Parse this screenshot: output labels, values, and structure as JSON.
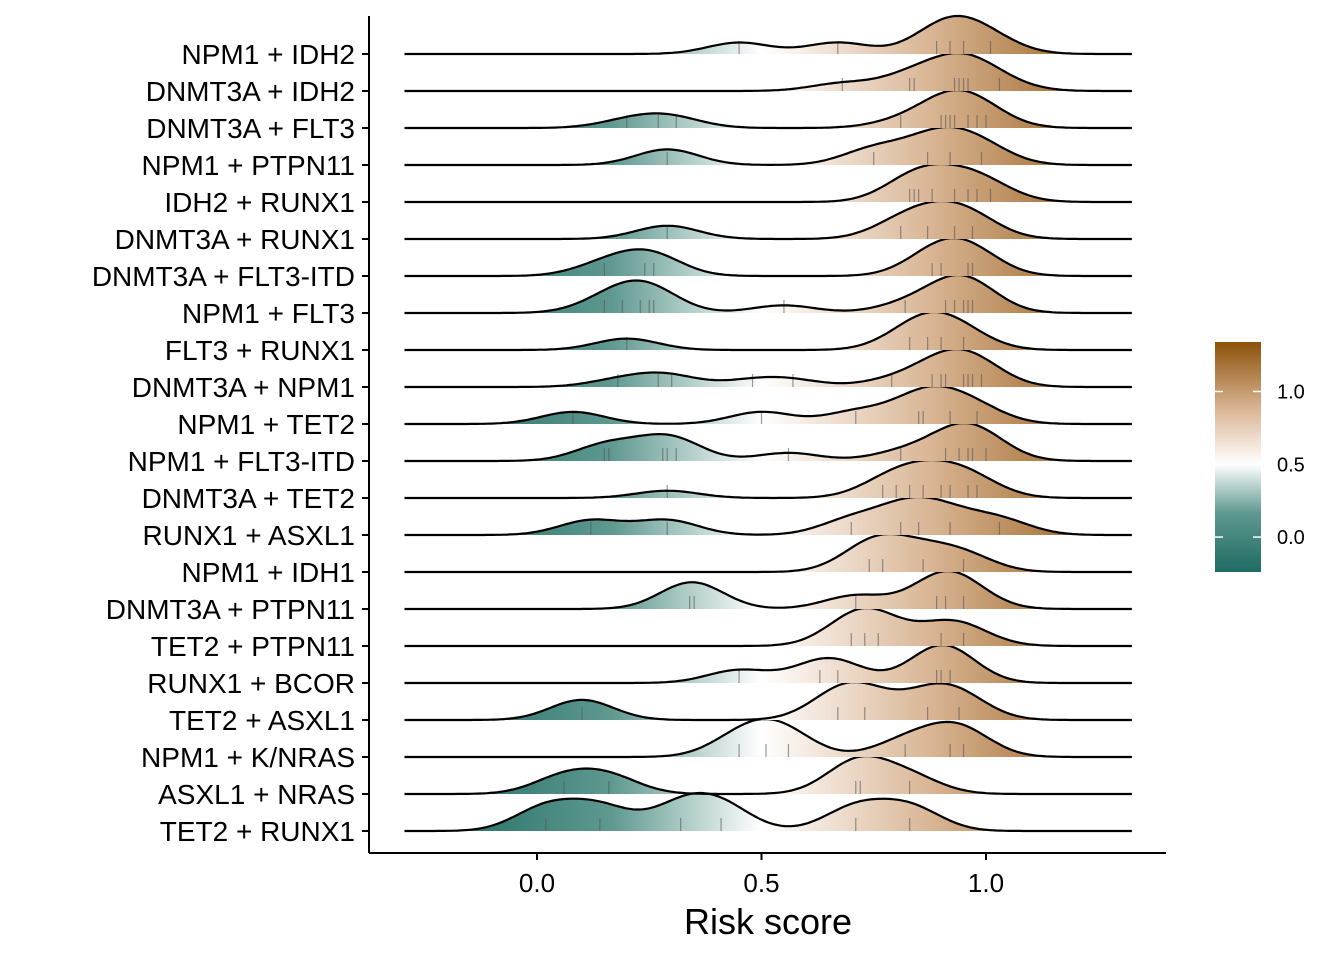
{
  "chart_data": {
    "type": "ridgeline",
    "xlabel": "Risk score",
    "xlim": [
      -0.37,
      1.4
    ],
    "xticks": [
      0.0,
      0.5,
      1.0
    ],
    "xtick_labels": [
      "0.0",
      "0.5",
      "1.0"
    ],
    "grid": false,
    "legend_position": "right",
    "colorbar": {
      "range": [
        -0.24,
        1.34
      ],
      "ticks": [
        0.0,
        0.5,
        1.0
      ],
      "tick_labels": [
        "0.0",
        "0.5",
        "1.0"
      ],
      "colors": {
        "low": "#1e6b62",
        "mid": "#ffffff",
        "high": "#8c510a"
      }
    },
    "series": [
      {
        "name": "NPM1 + IDH2",
        "values": [
          0.45,
          0.67,
          0.89,
          0.92,
          0.95,
          1.01
        ]
      },
      {
        "name": "DNMT3A + IDH2",
        "values": [
          0.68,
          0.83,
          0.84,
          0.93,
          0.94,
          0.95,
          0.96,
          1.03
        ]
      },
      {
        "name": "DNMT3A + FLT3",
        "values": [
          0.2,
          0.27,
          0.31,
          0.81,
          0.9,
          0.91,
          0.92,
          0.93,
          0.96,
          0.98,
          1.0
        ]
      },
      {
        "name": "NPM1 + PTPN11",
        "values": [
          0.29,
          0.75,
          0.87,
          0.92,
          0.99
        ]
      },
      {
        "name": "IDH2 + RUNX1",
        "values": [
          0.83,
          0.84,
          0.85,
          0.88,
          0.93,
          0.96,
          0.98,
          1.01
        ]
      },
      {
        "name": "DNMT3A + RUNX1",
        "values": [
          0.29,
          0.81,
          0.87,
          0.93,
          0.97
        ]
      },
      {
        "name": "DNMT3A + FLT3-ITD",
        "values": [
          0.15,
          0.24,
          0.26,
          0.88,
          0.9,
          0.96,
          0.97
        ]
      },
      {
        "name": "NPM1 + FLT3",
        "values": [
          0.15,
          0.19,
          0.23,
          0.25,
          0.26,
          0.55,
          0.82,
          0.91,
          0.93,
          0.95,
          0.96,
          0.97
        ]
      },
      {
        "name": "FLT3 + RUNX1",
        "values": [
          0.2,
          0.83,
          0.87,
          0.9,
          0.95
        ]
      },
      {
        "name": "DNMT3A + NPM1",
        "values": [
          0.18,
          0.27,
          0.3,
          0.48,
          0.57,
          0.79,
          0.88,
          0.9,
          0.91,
          0.95,
          0.96,
          0.97,
          0.99
        ]
      },
      {
        "name": "NPM1 + TET2",
        "values": [
          0.08,
          0.5,
          0.71,
          0.85,
          0.86,
          0.92,
          0.98
        ]
      },
      {
        "name": "NPM1 + FLT3-ITD",
        "values": [
          0.15,
          0.16,
          0.28,
          0.29,
          0.31,
          0.56,
          0.81,
          0.91,
          0.94,
          0.96,
          0.97,
          1.0
        ]
      },
      {
        "name": "DNMT3A + TET2",
        "values": [
          0.29,
          0.77,
          0.8,
          0.83,
          0.86,
          0.9,
          0.92,
          0.96,
          0.98
        ]
      },
      {
        "name": "RUNX1 + ASXL1",
        "values": [
          0.12,
          0.29,
          0.7,
          0.81,
          0.85,
          0.92,
          1.03
        ]
      },
      {
        "name": "NPM1 + IDH1",
        "values": [
          0.74,
          0.77,
          0.86,
          0.95
        ]
      },
      {
        "name": "DNMT3A + PTPN11",
        "values": [
          0.34,
          0.35,
          0.71,
          0.89,
          0.91,
          0.95
        ]
      },
      {
        "name": "TET2 + PTPN11",
        "values": [
          0.7,
          0.73,
          0.76,
          0.9,
          0.95
        ]
      },
      {
        "name": "RUNX1 + BCOR",
        "values": [
          0.45,
          0.63,
          0.67,
          0.89,
          0.9,
          0.92
        ]
      },
      {
        "name": "TET2 + ASXL1",
        "values": [
          0.1,
          0.67,
          0.73,
          0.87,
          0.94
        ]
      },
      {
        "name": "NPM1 + K/NRAS",
        "values": [
          0.45,
          0.51,
          0.56,
          0.82,
          0.92,
          0.95
        ]
      },
      {
        "name": "ASXL1 + NRAS",
        "values": [
          0.06,
          0.16,
          0.71,
          0.72,
          0.83
        ]
      },
      {
        "name": "TET2 + RUNX1",
        "values": [
          0.02,
          0.14,
          0.32,
          0.41,
          0.71,
          0.83
        ]
      }
    ]
  }
}
